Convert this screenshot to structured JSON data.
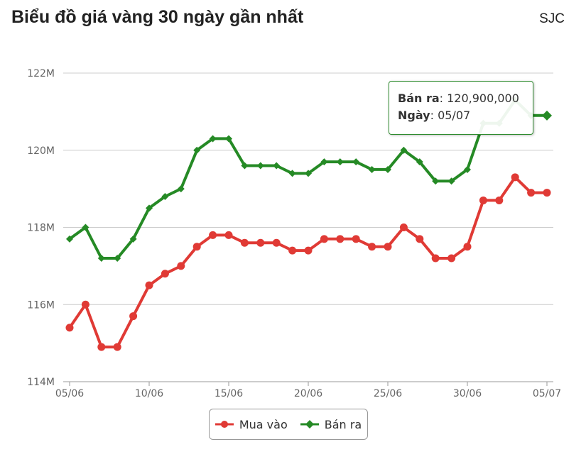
{
  "header": {
    "title": "Biểu đồ giá vàng 30 ngày gần nhất",
    "brand": "SJC"
  },
  "tooltip": {
    "label": "Bán ra",
    "value": "120,900,000",
    "date_label": "Ngày",
    "date_value": "05/07"
  },
  "colors": {
    "mua_vao": "#e03a35",
    "ban_ra": "#258a25",
    "grid": "#cccccc"
  },
  "chart_data": {
    "type": "line",
    "title": "Biểu đồ giá vàng 30 ngày gần nhất",
    "xlabel": "",
    "ylabel": "",
    "ylim": [
      114000000,
      122000000
    ],
    "yticks": [
      {
        "value": 114000000,
        "label": "114M"
      },
      {
        "value": 116000000,
        "label": "116M"
      },
      {
        "value": 118000000,
        "label": "118M"
      },
      {
        "value": 120000000,
        "label": "120M"
      },
      {
        "value": 122000000,
        "label": "122M"
      }
    ],
    "xticks": [
      {
        "index": 0,
        "label": "05/06"
      },
      {
        "index": 5,
        "label": "10/06"
      },
      {
        "index": 10,
        "label": "15/06"
      },
      {
        "index": 15,
        "label": "20/06"
      },
      {
        "index": 20,
        "label": "25/06"
      },
      {
        "index": 25,
        "label": "30/06"
      },
      {
        "index": 30,
        "label": "05/07"
      }
    ],
    "x": [
      "05/06",
      "06/06",
      "07/06",
      "08/06",
      "09/06",
      "10/06",
      "11/06",
      "12/06",
      "13/06",
      "14/06",
      "15/06",
      "16/06",
      "17/06",
      "18/06",
      "19/06",
      "20/06",
      "21/06",
      "22/06",
      "23/06",
      "24/06",
      "25/06",
      "26/06",
      "27/06",
      "28/06",
      "29/06",
      "30/06",
      "01/07",
      "02/07",
      "03/07",
      "04/07",
      "05/07"
    ],
    "grid": true,
    "legend": "bottom-center",
    "series": [
      {
        "name": "Mua vào",
        "marker": "circle",
        "values": [
          115400000,
          116000000,
          114900000,
          114900000,
          115700000,
          116500000,
          116800000,
          117000000,
          117500000,
          117800000,
          117800000,
          117600000,
          117600000,
          117600000,
          117400000,
          117400000,
          117700000,
          117700000,
          117700000,
          117500000,
          117500000,
          118000000,
          117700000,
          117200000,
          117200000,
          117500000,
          118700000,
          118700000,
          119300000,
          118900000,
          118900000
        ]
      },
      {
        "name": "Bán ra",
        "marker": "diamond",
        "values": [
          117700000,
          118000000,
          117200000,
          117200000,
          117700000,
          118500000,
          118800000,
          119000000,
          120000000,
          120300000,
          120300000,
          119600000,
          119600000,
          119600000,
          119400000,
          119400000,
          119700000,
          119700000,
          119700000,
          119500000,
          119500000,
          120000000,
          119700000,
          119200000,
          119200000,
          119500000,
          120700000,
          120700000,
          121300000,
          120900000,
          120900000
        ]
      }
    ]
  },
  "legend": {
    "items": [
      {
        "label": "Mua vào"
      },
      {
        "label": "Bán ra"
      }
    ]
  }
}
